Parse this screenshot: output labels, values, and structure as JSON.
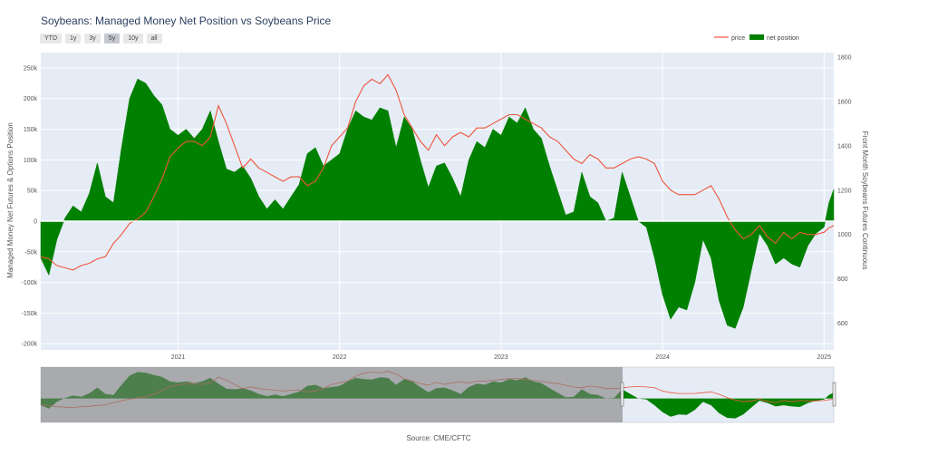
{
  "chart_data": {
    "type": "area",
    "title": "Soybeans: Managed Money Net Position vs Soybeans Price",
    "ylabel": "Managed Money Net Futures & Options Position",
    "y2label": "Front Month Soybeans Futures Continuous",
    "source": "Source: CME/CFTC",
    "range_buttons": [
      "YTD",
      "1y",
      "3y",
      "5y",
      "10y",
      "all"
    ],
    "active_range": "5y",
    "ylim": [
      -210000,
      275000
    ],
    "y2lim": [
      480,
      1820
    ],
    "xlim": [
      2020.15,
      2025.06
    ],
    "x_ticks": [
      2021,
      2022,
      2023,
      2024,
      2025
    ],
    "x_tick_labels": [
      "2021",
      "2022",
      "2023",
      "2024",
      "2025"
    ],
    "y_ticks": [
      -200000,
      -150000,
      -100000,
      -50000,
      0,
      50000,
      100000,
      150000,
      200000,
      250000
    ],
    "y_tick_labels": [
      "-200k",
      "-150k",
      "-100k",
      "-50k",
      "0",
      "50k",
      "100k",
      "150k",
      "200k",
      "250k"
    ],
    "y2_ticks": [
      600,
      800,
      1000,
      1200,
      1400,
      1600,
      1800
    ],
    "y2_tick_labels": [
      "600",
      "800",
      "1000",
      "1200",
      "1400",
      "1600",
      "1800"
    ],
    "legend": {
      "placement": "top-right",
      "entries": [
        "price",
        "net position"
      ]
    },
    "colors": {
      "net_position": "#008000",
      "price": "#ef553b",
      "plot_bg": "#e5ecf6",
      "range_shade": "#7f7f7f"
    },
    "series": [
      {
        "name": "net position",
        "x": [
          2020.15,
          2020.2,
          2020.25,
          2020.3,
          2020.35,
          2020.4,
          2020.45,
          2020.5,
          2020.55,
          2020.6,
          2020.65,
          2020.7,
          2020.75,
          2020.8,
          2020.85,
          2020.9,
          2020.95,
          2021.0,
          2021.05,
          2021.1,
          2021.15,
          2021.2,
          2021.25,
          2021.3,
          2021.35,
          2021.4,
          2021.45,
          2021.5,
          2021.55,
          2021.6,
          2021.65,
          2021.7,
          2021.75,
          2021.8,
          2021.85,
          2021.9,
          2021.95,
          2022.0,
          2022.05,
          2022.1,
          2022.15,
          2022.2,
          2022.25,
          2022.3,
          2022.35,
          2022.4,
          2022.45,
          2022.5,
          2022.55,
          2022.6,
          2022.65,
          2022.7,
          2022.75,
          2022.8,
          2022.85,
          2022.9,
          2022.95,
          2023.0,
          2023.05,
          2023.1,
          2023.15,
          2023.2,
          2023.25,
          2023.3,
          2023.35,
          2023.4,
          2023.45,
          2023.5,
          2023.55,
          2023.6,
          2023.65,
          2023.7,
          2023.75,
          2023.8,
          2023.85,
          2023.9,
          2023.95,
          2024.0,
          2024.05,
          2024.1,
          2024.15,
          2024.2,
          2024.25,
          2024.3,
          2024.35,
          2024.4,
          2024.45,
          2024.5,
          2024.55,
          2024.6,
          2024.65,
          2024.7,
          2024.75,
          2024.8,
          2024.85,
          2024.9,
          2024.95,
          2025.0,
          2025.03,
          2025.06
        ],
        "values": [
          -60000,
          -88000,
          -30000,
          5000,
          25000,
          15000,
          45000,
          95000,
          40000,
          30000,
          120000,
          200000,
          232000,
          225000,
          205000,
          190000,
          150000,
          140000,
          150000,
          135000,
          150000,
          180000,
          130000,
          85000,
          80000,
          90000,
          70000,
          40000,
          20000,
          35000,
          20000,
          40000,
          60000,
          110000,
          120000,
          90000,
          100000,
          110000,
          150000,
          180000,
          170000,
          165000,
          185000,
          180000,
          120000,
          170000,
          150000,
          100000,
          55000,
          90000,
          95000,
          70000,
          40000,
          100000,
          130000,
          120000,
          150000,
          140000,
          170000,
          160000,
          185000,
          150000,
          135000,
          90000,
          50000,
          10000,
          15000,
          80000,
          40000,
          30000,
          0,
          5000,
          80000,
          40000,
          0,
          -10000,
          -60000,
          -120000,
          -160000,
          -140000,
          -145000,
          -100000,
          -30000,
          -60000,
          -130000,
          -170000,
          -175000,
          -140000,
          -80000,
          -20000,
          -40000,
          -70000,
          -60000,
          -70000,
          -75000,
          -40000,
          -20000,
          -10000,
          30000,
          52000
        ]
      },
      {
        "name": "price",
        "x": [
          2020.15,
          2020.2,
          2020.25,
          2020.3,
          2020.35,
          2020.4,
          2020.45,
          2020.5,
          2020.55,
          2020.6,
          2020.65,
          2020.7,
          2020.75,
          2020.8,
          2020.85,
          2020.9,
          2020.95,
          2021.0,
          2021.05,
          2021.1,
          2021.15,
          2021.2,
          2021.25,
          2021.3,
          2021.35,
          2021.4,
          2021.45,
          2021.5,
          2021.55,
          2021.6,
          2021.65,
          2021.7,
          2021.75,
          2021.8,
          2021.85,
          2021.9,
          2021.95,
          2022.0,
          2022.05,
          2022.1,
          2022.15,
          2022.2,
          2022.25,
          2022.3,
          2022.35,
          2022.4,
          2022.45,
          2022.5,
          2022.55,
          2022.6,
          2022.65,
          2022.7,
          2022.75,
          2022.8,
          2022.85,
          2022.9,
          2022.95,
          2023.0,
          2023.05,
          2023.1,
          2023.15,
          2023.2,
          2023.25,
          2023.3,
          2023.35,
          2023.4,
          2023.45,
          2023.5,
          2023.55,
          2023.6,
          2023.65,
          2023.7,
          2023.75,
          2023.8,
          2023.85,
          2023.9,
          2023.95,
          2024.0,
          2024.05,
          2024.1,
          2024.15,
          2024.2,
          2024.25,
          2024.3,
          2024.35,
          2024.4,
          2024.45,
          2024.5,
          2024.55,
          2024.6,
          2024.65,
          2024.7,
          2024.75,
          2024.8,
          2024.85,
          2024.9,
          2024.95,
          2025.0,
          2025.03,
          2025.06
        ],
        "values": [
          900,
          890,
          860,
          850,
          840,
          860,
          870,
          890,
          900,
          960,
          1000,
          1050,
          1070,
          1100,
          1170,
          1250,
          1350,
          1390,
          1420,
          1420,
          1400,
          1440,
          1580,
          1500,
          1400,
          1300,
          1340,
          1300,
          1280,
          1260,
          1240,
          1260,
          1260,
          1220,
          1240,
          1300,
          1400,
          1440,
          1480,
          1600,
          1670,
          1700,
          1680,
          1720,
          1650,
          1540,
          1480,
          1420,
          1380,
          1450,
          1400,
          1440,
          1460,
          1440,
          1480,
          1480,
          1500,
          1520,
          1540,
          1540,
          1520,
          1500,
          1480,
          1440,
          1420,
          1380,
          1340,
          1320,
          1360,
          1340,
          1300,
          1300,
          1320,
          1340,
          1350,
          1340,
          1320,
          1240,
          1200,
          1180,
          1180,
          1180,
          1200,
          1220,
          1160,
          1080,
          1020,
          980,
          1000,
          1040,
          990,
          960,
          1010,
          980,
          1010,
          1000,
          1000,
          1010,
          1030,
          1040
        ]
      }
    ]
  }
}
